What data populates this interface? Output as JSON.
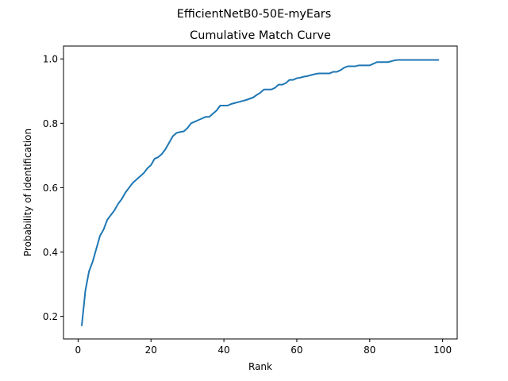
{
  "figure": {
    "suptitle": "EfficientNetB0-50E-myEars"
  },
  "chart_data": {
    "type": "line",
    "title": "Cumulative Match Curve",
    "xlabel": "Rank",
    "ylabel": "Probability of identification",
    "xlim": [
      -4,
      104
    ],
    "ylim": [
      0.13,
      1.04
    ],
    "xticks": [
      0,
      20,
      40,
      60,
      80,
      100
    ],
    "yticks": [
      0.2,
      0.4,
      0.6,
      0.8,
      1.0
    ],
    "xtick_labels": [
      "0",
      "20",
      "40",
      "60",
      "80",
      "100"
    ],
    "ytick_labels": [
      "0.2",
      "0.4",
      "0.6",
      "0.8",
      "1.0"
    ],
    "grid": false,
    "line_color": "#1f77b4",
    "series": [
      {
        "x": [
          1,
          2,
          3,
          4,
          5,
          6,
          7,
          8,
          9,
          10,
          11,
          12,
          13,
          14,
          15,
          16,
          17,
          18,
          19,
          20,
          21,
          22,
          23,
          24,
          25,
          26,
          27,
          28,
          29,
          30,
          31,
          32,
          33,
          34,
          35,
          36,
          37,
          38,
          39,
          40,
          41,
          42,
          43,
          44,
          45,
          46,
          47,
          48,
          49,
          50,
          51,
          52,
          53,
          54,
          55,
          56,
          57,
          58,
          59,
          60,
          61,
          62,
          63,
          64,
          65,
          66,
          67,
          68,
          69,
          70,
          71,
          72,
          73,
          74,
          75,
          76,
          77,
          78,
          79,
          80,
          81,
          82,
          83,
          84,
          85,
          86,
          87,
          88,
          89,
          90,
          91,
          92,
          93,
          94,
          95,
          96,
          97,
          98,
          99
        ],
        "values": [
          0.17,
          0.28,
          0.34,
          0.37,
          0.41,
          0.45,
          0.47,
          0.5,
          0.515,
          0.53,
          0.55,
          0.565,
          0.585,
          0.6,
          0.615,
          0.625,
          0.635,
          0.645,
          0.66,
          0.67,
          0.69,
          0.695,
          0.705,
          0.72,
          0.74,
          0.76,
          0.77,
          0.773,
          0.775,
          0.785,
          0.8,
          0.805,
          0.81,
          0.815,
          0.82,
          0.82,
          0.83,
          0.84,
          0.855,
          0.855,
          0.855,
          0.86,
          0.863,
          0.866,
          0.869,
          0.872,
          0.876,
          0.88,
          0.888,
          0.895,
          0.905,
          0.905,
          0.905,
          0.91,
          0.92,
          0.92,
          0.925,
          0.935,
          0.935,
          0.94,
          0.942,
          0.945,
          0.947,
          0.95,
          0.953,
          0.955,
          0.955,
          0.955,
          0.955,
          0.96,
          0.96,
          0.965,
          0.973,
          0.977,
          0.977,
          0.977,
          0.98,
          0.98,
          0.98,
          0.98,
          0.985,
          0.99,
          0.99,
          0.99,
          0.99,
          0.993,
          0.996,
          0.997,
          0.997,
          0.997,
          0.997,
          0.997,
          0.997,
          0.997,
          0.997,
          0.997,
          0.997,
          0.997,
          0.997
        ]
      }
    ]
  }
}
